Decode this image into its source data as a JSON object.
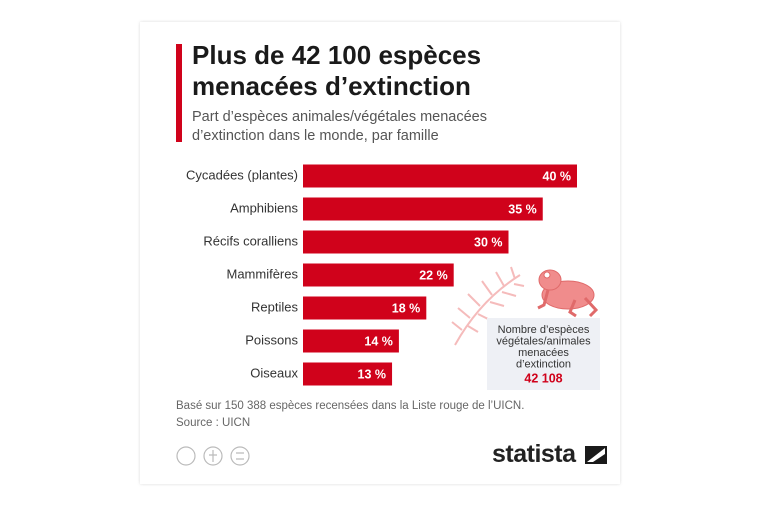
{
  "chart_data": {
    "type": "bar",
    "orientation": "horizontal",
    "title": "Plus de 42 100 espèces menacées d’extinction",
    "subtitle": "Part d’espèces animales/végétales menacées d’extinction dans le monde, par famille",
    "categories": [
      "Cycadées (plantes)",
      "Amphibiens",
      "Récifs coralliens",
      "Mammifères",
      "Reptiles",
      "Poissons",
      "Oiseaux"
    ],
    "values": [
      40,
      35,
      30,
      22,
      18,
      14,
      13
    ],
    "value_labels": [
      "40 %",
      "35 %",
      "30 %",
      "22 %",
      "18 %",
      "14 %",
      "13 %"
    ],
    "color": "#d0021b",
    "annotation": {
      "text": "Nombre d’espèces végétales/animales menacées d’extinction",
      "value": "42 108"
    },
    "note": "Basé sur 150 388 espèces recensées dans la Liste rouge de l’UICN.",
    "source": "Source : UICN",
    "brand": "statista"
  }
}
